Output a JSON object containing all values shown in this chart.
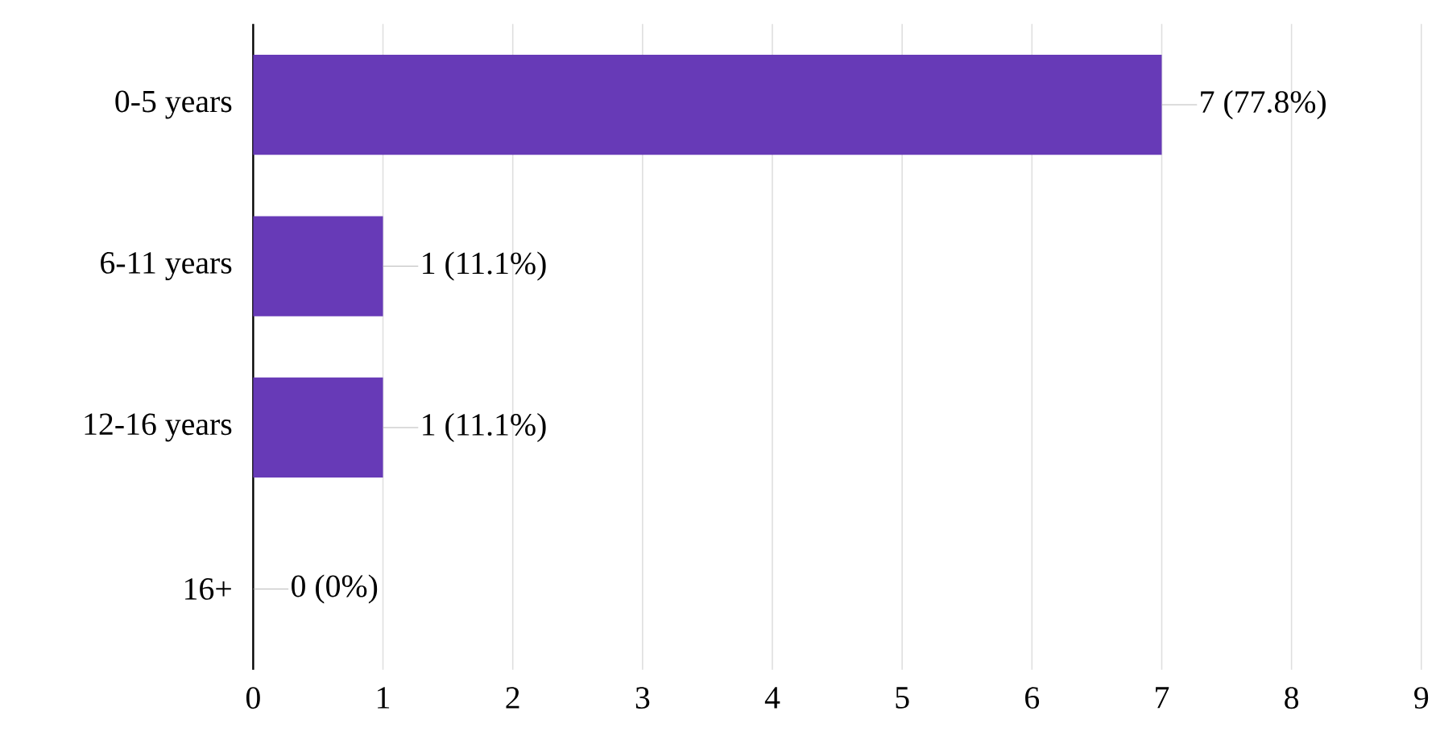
{
  "chart_data": {
    "type": "bar",
    "orientation": "horizontal",
    "categories": [
      "0-5 years",
      "6-11 years",
      "12-16 years",
      "16+"
    ],
    "values": [
      7,
      1,
      1,
      0
    ],
    "value_labels": [
      "7 (77.8%)",
      "1 (11.1%)",
      "1 (11.1%)",
      "0 (0%)"
    ],
    "color": "#673ab7",
    "xlim": [
      0,
      9
    ],
    "xticks": [
      0,
      1,
      2,
      3,
      4,
      5,
      6,
      7,
      8,
      9
    ],
    "grid": "x"
  }
}
